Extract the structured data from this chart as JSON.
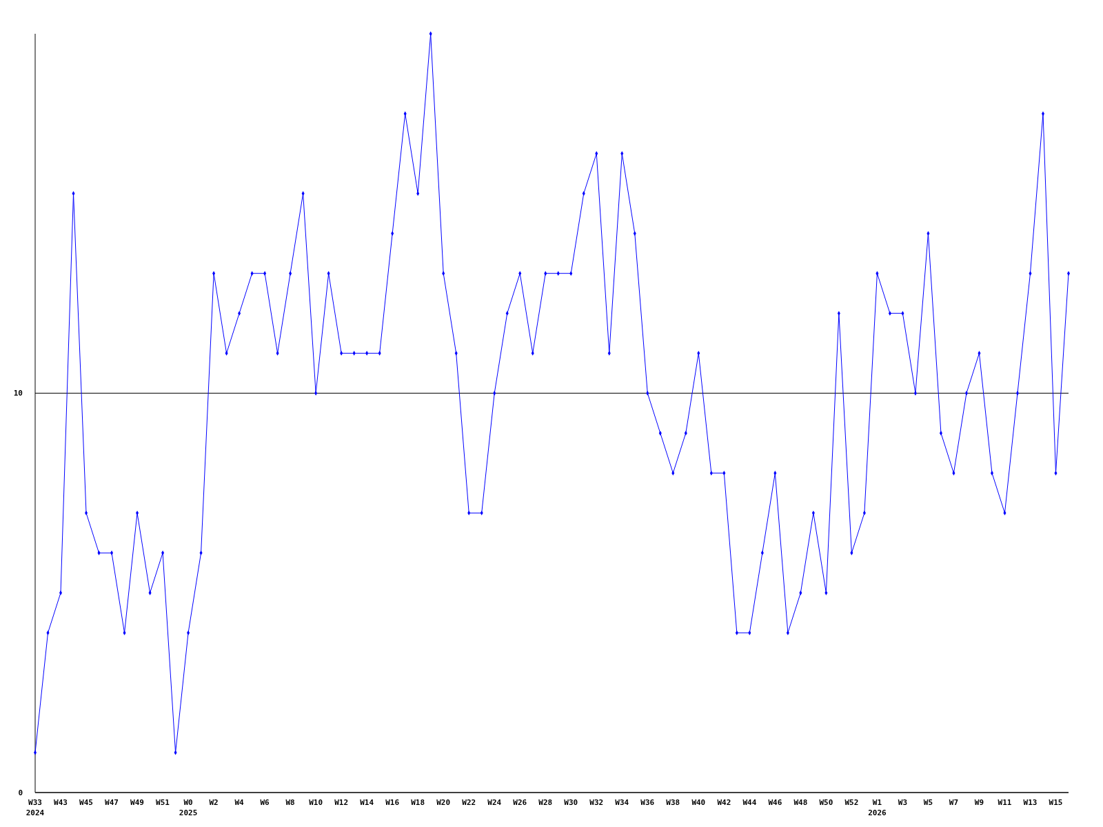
{
  "chart_data": {
    "type": "line",
    "categories": [
      "W33\n2024",
      null,
      "W43",
      null,
      "W45",
      null,
      "W47",
      null,
      "W49",
      null,
      "W51",
      null,
      "W0\n2025",
      null,
      "W2",
      null,
      "W4",
      null,
      "W6",
      null,
      "W8",
      null,
      "W10",
      null,
      "W12",
      null,
      "W14",
      null,
      "W16",
      null,
      "W18",
      null,
      "W20",
      null,
      "W22",
      null,
      "W24",
      null,
      "W26",
      null,
      "W28",
      null,
      "W30",
      null,
      "W32",
      null,
      "W34",
      null,
      "W36",
      null,
      "W38",
      null,
      "W40",
      null,
      "W42",
      null,
      "W44",
      null,
      "W46",
      null,
      "W48",
      null,
      "W50",
      null,
      "W52",
      null,
      "W1\n2026",
      null,
      "W3",
      null,
      "W5",
      null,
      "W7",
      null,
      "W9",
      null,
      "W11",
      null,
      "W13",
      null,
      "W15",
      null
    ],
    "series": [
      {
        "color": "#0000ff",
        "values": [
          1,
          4,
          5,
          15,
          7,
          6,
          6,
          4,
          7,
          5,
          6,
          1,
          4,
          6,
          13,
          11,
          12,
          13,
          13,
          11,
          13,
          15,
          10,
          13,
          11,
          11,
          11,
          11,
          14,
          17,
          15,
          19,
          13,
          11,
          7,
          7,
          10,
          12,
          13,
          11,
          13,
          13,
          13,
          15,
          16,
          11,
          16,
          14,
          10,
          9,
          8,
          9,
          11,
          8,
          8,
          4,
          4,
          6,
          8,
          4,
          5,
          7,
          5,
          12,
          6,
          7,
          13,
          12,
          12,
          10,
          14,
          9,
          8,
          10,
          11,
          8,
          7,
          10,
          13,
          17,
          8,
          13
        ]
      }
    ],
    "ylim": [
      0,
      19
    ],
    "yticks": [
      0,
      10
    ],
    "grid": "y",
    "marker": "diamond",
    "line_style": "solid"
  }
}
